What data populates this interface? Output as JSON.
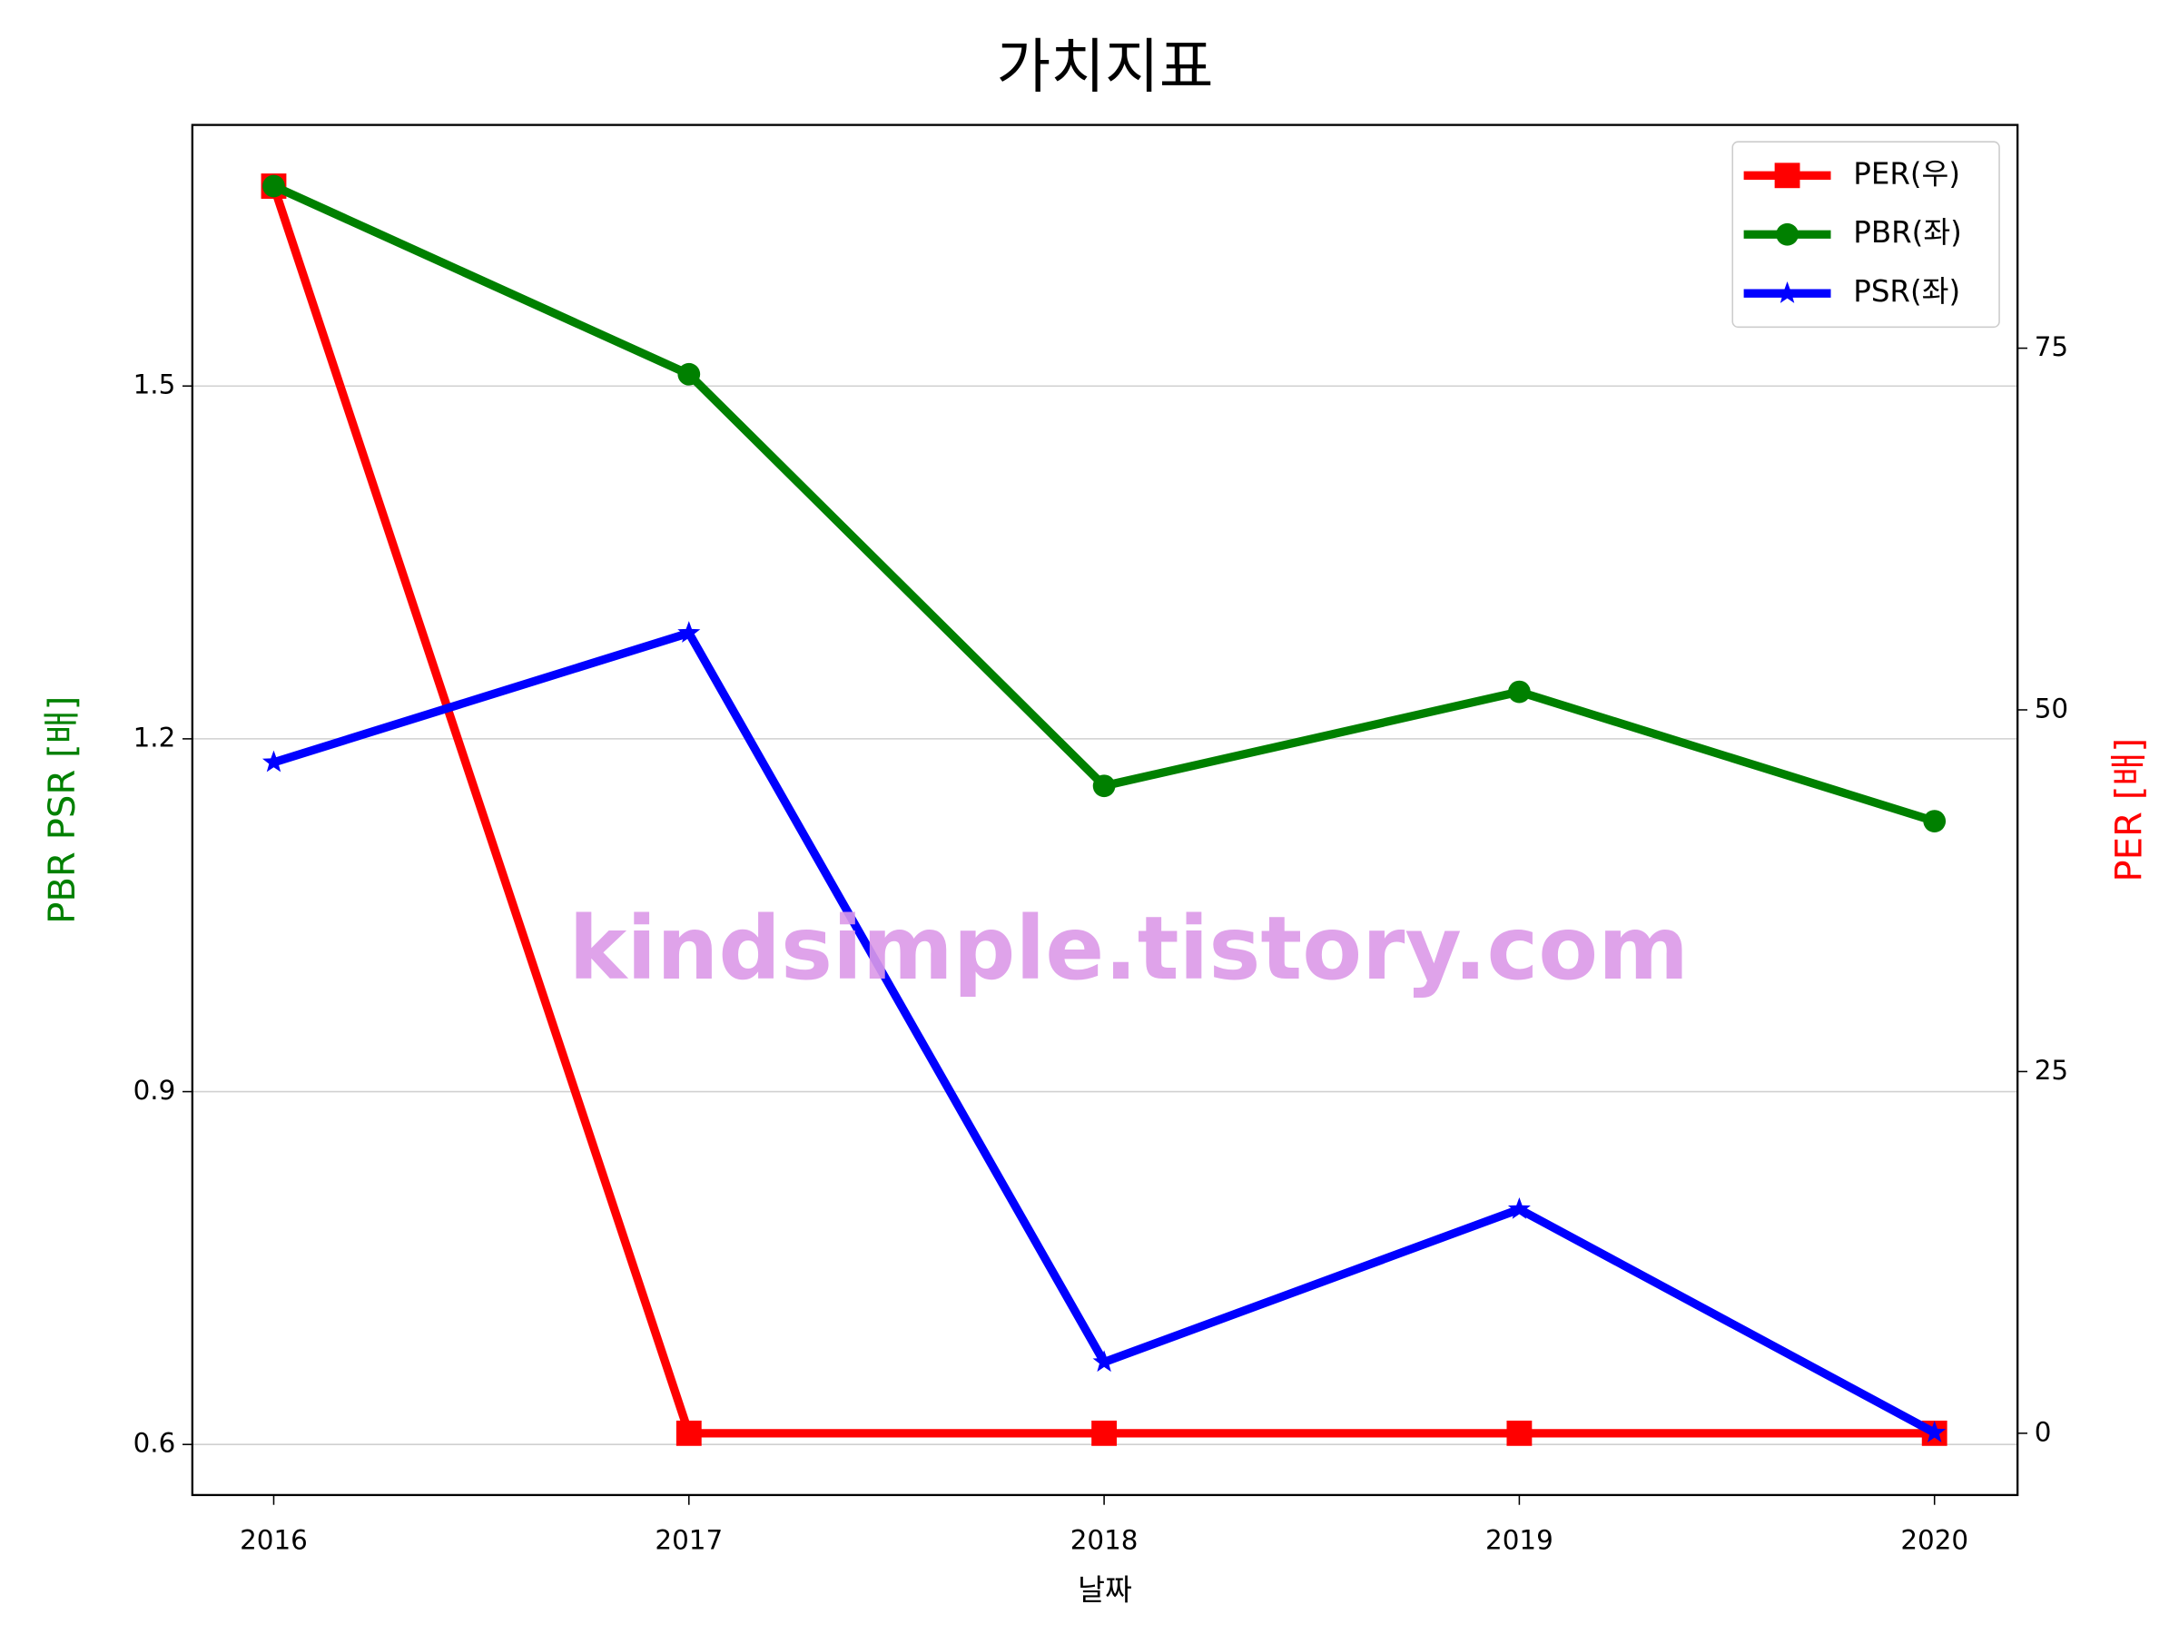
{
  "chart_data": {
    "type": "line",
    "title": "가치지표",
    "xlabel": "날짜",
    "ylabel": "PBR PSR [배]",
    "y2label": "PER [배]",
    "ylabel_color": "green",
    "y2label_color": "red",
    "x": [
      2016,
      2017,
      2018,
      2019,
      2020
    ],
    "xlim": [
      2015.804,
      2020.2
    ],
    "xticks": [
      2016,
      2017,
      2018,
      2019,
      2020
    ],
    "ylim": [
      0.557,
      1.722
    ],
    "yticks": [
      0.6,
      0.9,
      1.2,
      1.5
    ],
    "y2lim": [
      -4.27,
      90.43
    ],
    "y2ticks": [
      0,
      25,
      50,
      75
    ],
    "grid": true,
    "legend": "upper right",
    "watermark": "kindsimple.tistory.com",
    "series": [
      {
        "name": "PER(우)",
        "color": "#ff0000",
        "marker": "square",
        "axis": "y2",
        "values": [
          86.2,
          0,
          0,
          0,
          0
        ]
      },
      {
        "name": "PBR(좌)",
        "color": "#008000",
        "marker": "circle",
        "values": [
          1.67,
          1.51,
          1.16,
          1.24,
          1.13
        ]
      },
      {
        "name": "PSR(좌)",
        "color": "#0000ff",
        "marker": "star",
        "values": [
          1.18,
          1.29,
          0.67,
          0.8,
          0.61
        ]
      }
    ]
  }
}
